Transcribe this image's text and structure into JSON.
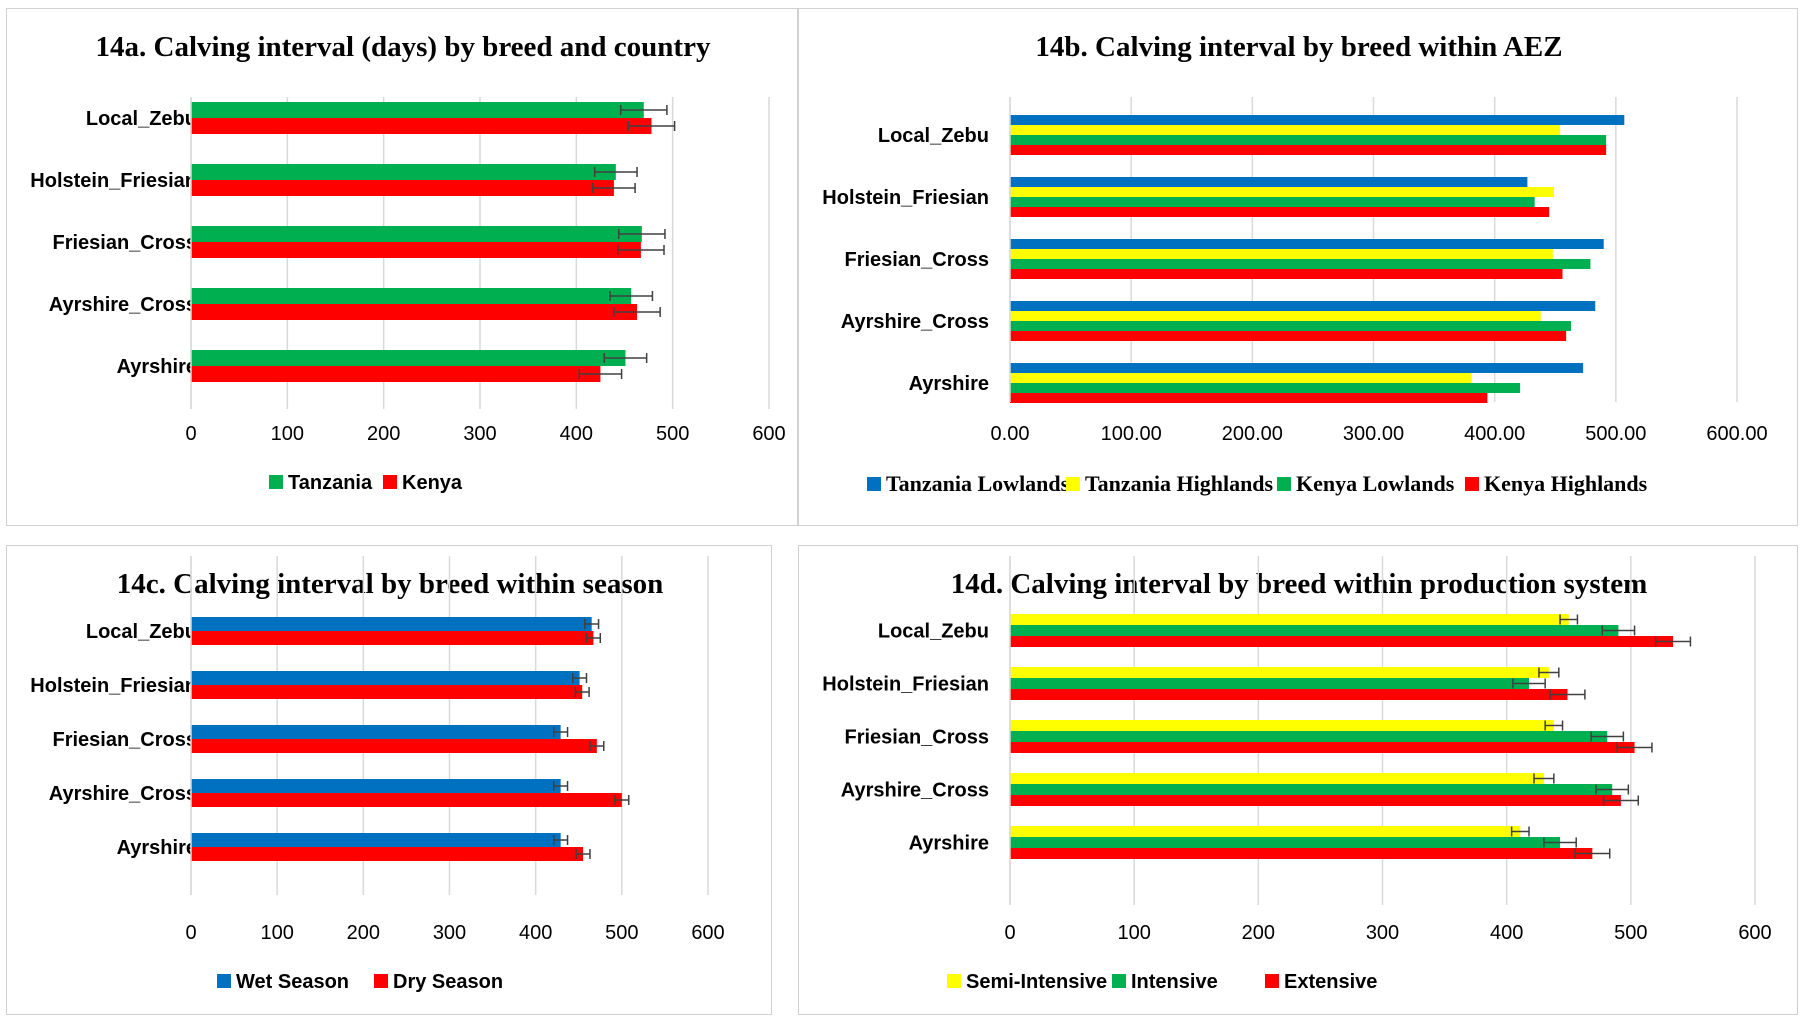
{
  "colors": {
    "green": "#00b050",
    "red": "#ff0000",
    "blue": "#0070c0",
    "yellow": "#ffff00"
  },
  "chart_data": [
    {
      "id": "a",
      "type": "bar",
      "title": "14a. Calving interval (days) by breed and country",
      "categories": [
        "Local_Zebu",
        "Holstein_Friesian",
        "Friesian_Cross",
        "Ayrshire_Cross",
        "Ayrshire"
      ],
      "xlim": [
        0,
        600
      ],
      "xticks": [
        "0",
        "100",
        "200",
        "300",
        "400",
        "500",
        "600"
      ],
      "grid": true,
      "legend_position": "bottom",
      "series": [
        {
          "name": "Tanzania",
          "color": "#00b050",
          "values": [
            470,
            441,
            468,
            457,
            451
          ],
          "errors": [
            24,
            22,
            24,
            22,
            22
          ]
        },
        {
          "name": "Kenya",
          "color": "#ff0000",
          "values": [
            478,
            439,
            467,
            463,
            425
          ],
          "errors": [
            24,
            22,
            24,
            24,
            22
          ]
        }
      ]
    },
    {
      "id": "b",
      "type": "bar",
      "title": "14b. Calving interval by breed within AEZ",
      "categories": [
        "Local_Zebu",
        "Holstein_Friesian",
        "Friesian_Cross",
        "Ayrshire_Cross",
        "Ayrshire"
      ],
      "xlim": [
        0,
        600
      ],
      "xticks": [
        "0.00",
        "100.00",
        "200.00",
        "300.00",
        "400.00",
        "500.00",
        "600.00"
      ],
      "grid": true,
      "legend_position": "bottom",
      "series": [
        {
          "name": "Tanzania Lowlands",
          "color": "#0070c0",
          "values": [
            507,
            427,
            490,
            483,
            473
          ]
        },
        {
          "name": "Tanzania Highlands",
          "color": "#ffff00",
          "values": [
            454,
            449,
            448,
            438,
            381
          ]
        },
        {
          "name": "Kenya Lowlands",
          "color": "#00b050",
          "values": [
            492,
            433,
            479,
            463,
            421
          ]
        },
        {
          "name": "Kenya Highlands",
          "color": "#ff0000",
          "values": [
            492,
            445,
            456,
            459,
            394
          ]
        }
      ]
    },
    {
      "id": "c",
      "type": "bar",
      "title": "14c. Calving interval by breed within season",
      "categories": [
        "Local_Zebu",
        "Holstein_Friesian",
        "Friesian_Cross",
        "Ayrshire_Cross",
        "Ayrshire"
      ],
      "xlim": [
        0,
        600
      ],
      "xticks": [
        "0",
        "100",
        "200",
        "300",
        "400",
        "500",
        "600"
      ],
      "grid": true,
      "legend_position": "bottom",
      "series": [
        {
          "name": "Wet Season",
          "color": "#0070c0",
          "values": [
            465,
            451,
            429,
            429,
            429
          ],
          "errors": [
            8,
            8,
            8,
            8,
            8
          ]
        },
        {
          "name": "Dry Season",
          "color": "#ff0000",
          "values": [
            467,
            454,
            471,
            500,
            455
          ],
          "errors": [
            8,
            8,
            8,
            8,
            8
          ]
        }
      ]
    },
    {
      "id": "d",
      "type": "bar",
      "title": "14d. Calving interval by breed within production system",
      "categories": [
        "Local_Zebu",
        "Holstein_Friesian",
        "Friesian_Cross",
        "Ayrshire_Cross",
        "Ayrshire"
      ],
      "xlim": [
        0,
        600
      ],
      "xticks": [
        "0",
        "100",
        "200",
        "300",
        "400",
        "500",
        "600"
      ],
      "grid": true,
      "legend_position": "bottom",
      "series": [
        {
          "name": "Semi-Intensive",
          "color": "#ffff00",
          "values": [
            450,
            434,
            438,
            430,
            411
          ],
          "errors": [
            7,
            8,
            7,
            8,
            7
          ]
        },
        {
          "name": "Intensive",
          "color": "#00b050",
          "values": [
            490,
            418,
            481,
            485,
            443
          ],
          "errors": [
            13,
            13,
            13,
            13,
            13
          ]
        },
        {
          "name": "Extensive",
          "color": "#ff0000",
          "values": [
            534,
            449,
            503,
            492,
            469
          ],
          "errors": [
            14,
            14,
            14,
            14,
            14
          ]
        }
      ]
    }
  ]
}
